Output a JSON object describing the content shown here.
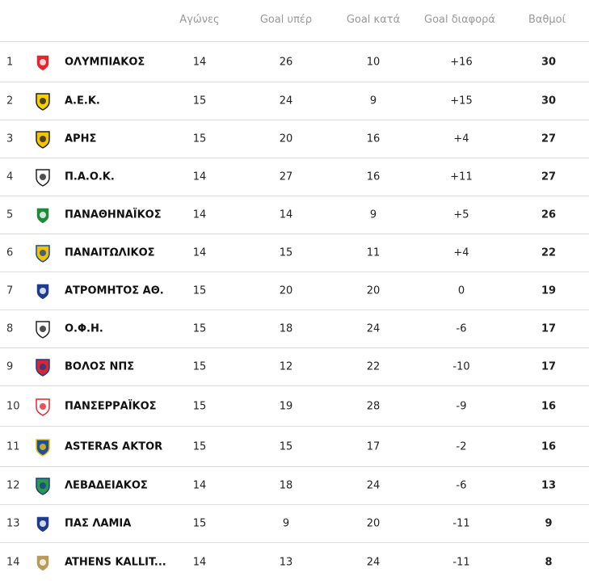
{
  "headers": {
    "played": "Αγώνες",
    "goals_for": "Goal υπέρ",
    "goals_against": "Goal κατά",
    "goal_diff": "Goal διαφορά",
    "points": "Βαθμοί"
  },
  "rows": [
    {
      "rank": "1",
      "team": "ΟΛΥΜΠΙΑΚΟΣ",
      "played": "14",
      "gf": "26",
      "ga": "10",
      "gd": "+16",
      "pts": "30",
      "logo": "olympiacos-crest-icon",
      "color": "#e2272e",
      "color2": "#ffffff"
    },
    {
      "rank": "2",
      "team": "Α.Ε.Κ.",
      "played": "15",
      "gf": "24",
      "ga": "9",
      "gd": "+15",
      "pts": "30",
      "logo": "aek-crest-icon",
      "color": "#f5d000",
      "color2": "#222222"
    },
    {
      "rank": "3",
      "team": "ΑΡΗΣ",
      "played": "15",
      "gf": "20",
      "ga": "16",
      "gd": "+4",
      "pts": "27",
      "logo": "aris-crest-icon",
      "color": "#f5c400",
      "color2": "#222222"
    },
    {
      "rank": "4",
      "team": "Π.Α.Ο.Κ.",
      "played": "14",
      "gf": "27",
      "ga": "16",
      "gd": "+11",
      "pts": "27",
      "logo": "paok-crest-icon",
      "color": "#ffffff",
      "color2": "#222222"
    },
    {
      "rank": "5",
      "team": "ΠΑΝΑΘΗΝΑΪΚΟΣ",
      "played": "14",
      "gf": "14",
      "ga": "9",
      "gd": "+5",
      "pts": "26",
      "logo": "panathinaikos-crest-icon",
      "color": "#1f8a3a",
      "color2": "#ffffff"
    },
    {
      "rank": "6",
      "team": "ΠΑΝΑΙΤΩΛΙΚΟΣ",
      "played": "14",
      "gf": "15",
      "ga": "11",
      "gd": "+4",
      "pts": "22",
      "logo": "panetolikos-crest-icon",
      "color": "#f2c200",
      "color2": "#1a4a9a"
    },
    {
      "rank": "7",
      "team": "ΑΤΡΟΜΗΤΟΣ ΑΘ.",
      "played": "15",
      "gf": "20",
      "ga": "20",
      "gd": "0",
      "pts": "19",
      "logo": "atromitos-crest-icon",
      "color": "#1d3c8f",
      "color2": "#ffffff"
    },
    {
      "rank": "8",
      "team": "Ο.Φ.Η.",
      "played": "15",
      "gf": "18",
      "ga": "24",
      "gd": "-6",
      "pts": "17",
      "logo": "ofi-crest-icon",
      "color": "#ffffff",
      "color2": "#222222"
    },
    {
      "rank": "9",
      "team": "ΒΟΛΟΣ ΝΠΣ",
      "played": "15",
      "gf": "12",
      "ga": "22",
      "gd": "-10",
      "pts": "17",
      "logo": "volos-crest-icon",
      "color": "#d62631",
      "color2": "#1d3c8f"
    },
    {
      "rank": "10",
      "team": "ΠΑΝΣΕΡΡΑΪΚΟΣ",
      "played": "15",
      "gf": "19",
      "ga": "28",
      "gd": "-9",
      "pts": "16",
      "logo": "panserraikos-crest-icon",
      "color": "#ffffff",
      "color2": "#e2272e"
    },
    {
      "rank": "11",
      "team": "ASTERAS AKTOR",
      "played": "15",
      "gf": "15",
      "ga": "17",
      "gd": "-2",
      "pts": "16",
      "logo": "asteras-crest-icon",
      "color": "#1d4fa0",
      "color2": "#f2c200"
    },
    {
      "rank": "12",
      "team": "ΛΕΒΑΔΕΙΑΚΟΣ",
      "played": "14",
      "gf": "18",
      "ga": "24",
      "gd": "-6",
      "pts": "13",
      "logo": "levadiakos-crest-icon",
      "color": "#2a9a4a",
      "color2": "#1d3c8f"
    },
    {
      "rank": "13",
      "team": "ΠΑΣ ΛΑΜΙΑ",
      "played": "15",
      "gf": "9",
      "ga": "20",
      "gd": "-11",
      "pts": "9",
      "logo": "lamia-crest-icon",
      "color": "#1d3c8f",
      "color2": "#ffffff"
    },
    {
      "rank": "14",
      "team": "ATHENS KALLIT...",
      "played": "14",
      "gf": "13",
      "ga": "24",
      "gd": "-11",
      "pts": "8",
      "logo": "athens-kallithea-crest-icon",
      "color": "#b99a5a",
      "color2": "#ffffff"
    }
  ]
}
